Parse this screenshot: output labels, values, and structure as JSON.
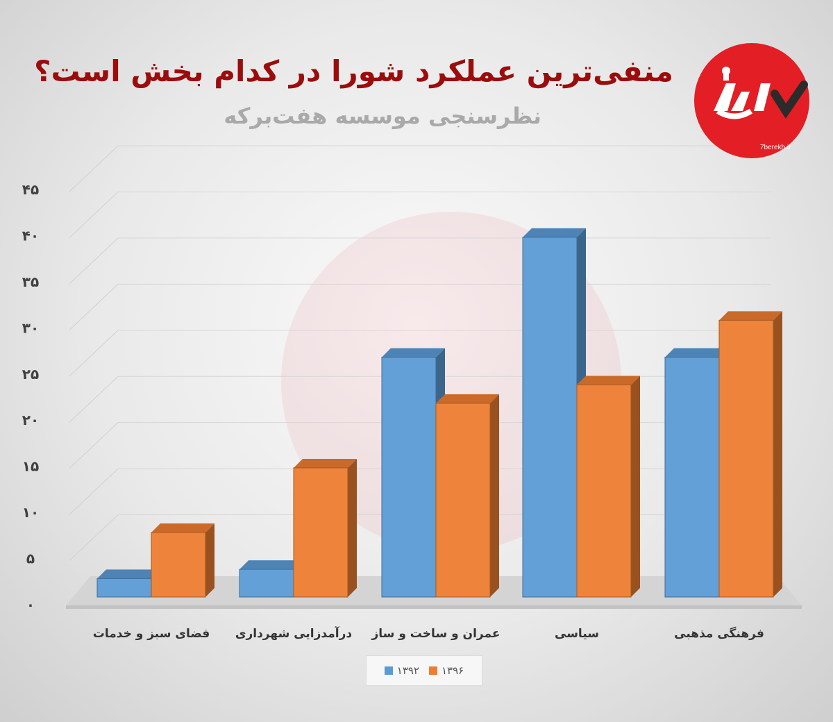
{
  "header": {
    "title": "منفی‌ترین عملکرد شورا در کدام بخش است؟",
    "subtitle": "نظرسنجی موسسه هفت‌برکه"
  },
  "brand": {
    "logo_icon": "7berekh-logo",
    "url": "7berekh.ir",
    "color": "#e31e24"
  },
  "chart_data": {
    "type": "bar",
    "style": "3d-clustered",
    "categories": [
      "فضای سبز و خدمات",
      "درآمدزایی شهرداری",
      "عمران و ساخت و ساز",
      "سیاسی",
      "فرهنگی مذهبی"
    ],
    "series": [
      {
        "name": "۱۳۹۲",
        "color": "#5b9bd5",
        "values": [
          2,
          3,
          26,
          39,
          26
        ]
      },
      {
        "name": "۱۳۹۶",
        "color": "#ed7d31",
        "values": [
          7,
          14,
          21,
          23,
          30
        ]
      }
    ],
    "yticks": [
      "۰",
      "۵",
      "۱۰",
      "۱۵",
      "۲۰",
      "۲۵",
      "۳۰",
      "۳۵",
      "۴۰",
      "۴۵"
    ],
    "ylim": [
      0,
      45
    ],
    "grid": true,
    "legend_position": "bottom",
    "xlabel": "",
    "ylabel": ""
  }
}
